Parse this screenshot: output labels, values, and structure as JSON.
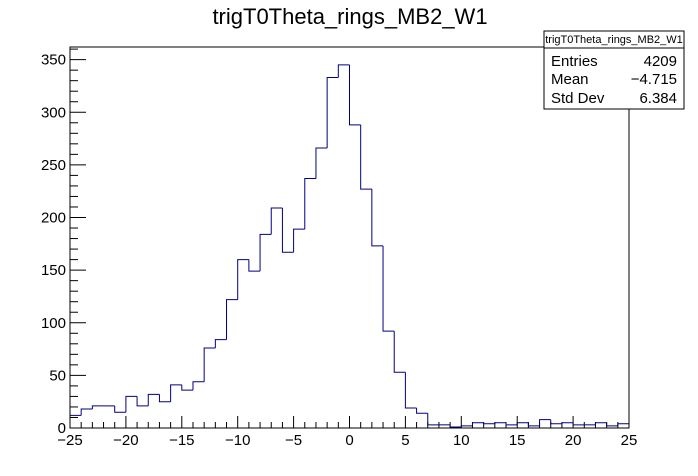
{
  "chart_data": {
    "type": "bar",
    "title": "trigT0Theta_rings_MB2_W1",
    "xlabel": "",
    "ylabel": "",
    "xlim": [
      -25,
      25
    ],
    "ylim": [
      0,
      362
    ],
    "bin_width": 1,
    "x_ticks": [
      -25,
      -20,
      -15,
      -10,
      -5,
      0,
      5,
      10,
      15,
      20,
      25
    ],
    "y_ticks": [
      0,
      50,
      100,
      150,
      200,
      250,
      300,
      350
    ],
    "series_color": "#000080",
    "grid": false,
    "legend": "none",
    "stats_box": {
      "placement": "top-right",
      "name": "trigT0Theta_rings_MB2_W1",
      "rows": [
        {
          "label": "Entries",
          "value": "4209"
        },
        {
          "label": "Mean",
          "value": "−4.715"
        },
        {
          "label": "Std Dev",
          "value": "6.384"
        }
      ]
    },
    "bins": [
      {
        "x": -25,
        "y": 12
      },
      {
        "x": -24,
        "y": 18
      },
      {
        "x": -23,
        "y": 21
      },
      {
        "x": -22,
        "y": 21
      },
      {
        "x": -21,
        "y": 15
      },
      {
        "x": -20,
        "y": 30
      },
      {
        "x": -19,
        "y": 21
      },
      {
        "x": -18,
        "y": 32
      },
      {
        "x": -17,
        "y": 25
      },
      {
        "x": -16,
        "y": 41
      },
      {
        "x": -15,
        "y": 36
      },
      {
        "x": -14,
        "y": 44
      },
      {
        "x": -13,
        "y": 76
      },
      {
        "x": -12,
        "y": 84
      },
      {
        "x": -11,
        "y": 122
      },
      {
        "x": -10,
        "y": 160
      },
      {
        "x": -9,
        "y": 149
      },
      {
        "x": -8,
        "y": 184
      },
      {
        "x": -7,
        "y": 209
      },
      {
        "x": -6,
        "y": 167
      },
      {
        "x": -5,
        "y": 189
      },
      {
        "x": -4,
        "y": 237
      },
      {
        "x": -3,
        "y": 266
      },
      {
        "x": -2,
        "y": 333
      },
      {
        "x": -1,
        "y": 345
      },
      {
        "x": 0,
        "y": 288
      },
      {
        "x": 1,
        "y": 227
      },
      {
        "x": 2,
        "y": 173
      },
      {
        "x": 3,
        "y": 92
      },
      {
        "x": 4,
        "y": 53
      },
      {
        "x": 5,
        "y": 19
      },
      {
        "x": 6,
        "y": 14
      },
      {
        "x": 7,
        "y": 3
      },
      {
        "x": 8,
        "y": 3
      },
      {
        "x": 9,
        "y": 1
      },
      {
        "x": 10,
        "y": 2
      },
      {
        "x": 11,
        "y": 5
      },
      {
        "x": 12,
        "y": 4
      },
      {
        "x": 13,
        "y": 5
      },
      {
        "x": 14,
        "y": 3
      },
      {
        "x": 15,
        "y": 5
      },
      {
        "x": 16,
        "y": 2
      },
      {
        "x": 17,
        "y": 8
      },
      {
        "x": 18,
        "y": 4
      },
      {
        "x": 19,
        "y": 5
      },
      {
        "x": 20,
        "y": 3
      },
      {
        "x": 21,
        "y": 3
      },
      {
        "x": 22,
        "y": 5
      },
      {
        "x": 23,
        "y": 2
      },
      {
        "x": 24,
        "y": 4
      }
    ]
  }
}
